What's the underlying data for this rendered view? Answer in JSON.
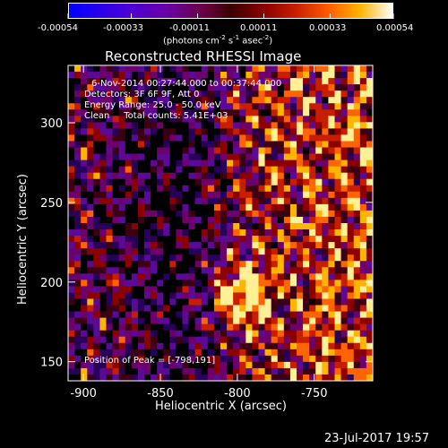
{
  "colorbar": {
    "ticks": [
      "-0.00054",
      "-0.00033",
      "-0.00011",
      "0.00011",
      "0.00033",
      "0.00054"
    ],
    "tick_values": [
      -0.00054,
      -0.00033,
      -0.00011,
      0.00011,
      0.00033,
      0.00054
    ],
    "units_label": "(photons cm",
    "units_sup1": "-2",
    "units_mid": " s",
    "units_sup2": "-1",
    "units_end": " asec",
    "units_sup3": "-2",
    "units_close": ")",
    "palette": [
      "#0000ff",
      "#6a00a8",
      "#3a0000",
      "#c81e00",
      "#ff5a00",
      "#ffb400",
      "#ffffff"
    ]
  },
  "title": "Reconstructed RHESSI Image",
  "annotations": {
    "time": "6-Nov-2014 00:27:44.000 to 00:37:44.000",
    "detectors": "Detectors: 3F 6F 9F, Att 0",
    "energy": "Energy Range: 25.0 - 50.0 keV",
    "clean": "Clean     Total counts: 5.41E+03",
    "peak": "Position of Peak = [-798,191]"
  },
  "footer": {
    "date": "23-Jul-2017 19:57"
  },
  "chart_data": {
    "type": "heatmap",
    "title": "Reconstructed RHESSI Image",
    "xlabel": "Heliocentric X (arcsec)",
    "ylabel": "Heliocentric Y (arcsec)",
    "xlim": [
      -910,
      -712
    ],
    "ylim": [
      138,
      336
    ],
    "x_ticks": [
      -900,
      -850,
      -800,
      -750
    ],
    "y_ticks": [
      150,
      200,
      250,
      300
    ],
    "x_tick_labels": [
      "-900",
      "-850",
      "-800",
      "-750"
    ],
    "y_tick_labels": [
      "150",
      "200",
      "250",
      "300"
    ],
    "peak_position": [
      -798,
      191
    ],
    "colorbar_range": [
      -0.00054,
      0.00054
    ],
    "grid": false
  }
}
